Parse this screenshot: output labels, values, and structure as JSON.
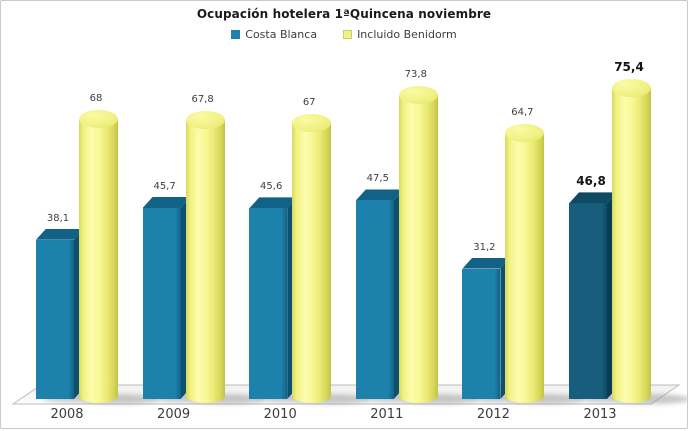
{
  "chart_data": {
    "type": "bar",
    "style": "3d",
    "title": "Ocupación hotelera 1ªQuincena noviembre",
    "categories": [
      "2008",
      "2009",
      "2010",
      "2011",
      "2012",
      "2013"
    ],
    "series": [
      {
        "name": "Costa Blanca",
        "shape": "box3d",
        "color": "#1c81ab",
        "highlight_color": "#175d7c",
        "values": [
          38.1,
          45.7,
          45.6,
          47.5,
          31.2,
          46.8
        ],
        "labels": [
          "38,1",
          "45,7",
          "45,6",
          "47,5",
          "31,2",
          "46,8"
        ]
      },
      {
        "name": "Incluido Benidorm",
        "shape": "cylinder3d",
        "color": "#f1f186",
        "values": [
          68,
          67.8,
          67,
          73.8,
          64.7,
          75.4
        ],
        "labels": [
          "68",
          "67,8",
          "67",
          "73,8",
          "64,7",
          "75,4"
        ]
      }
    ],
    "highlight_category": "2013",
    "value_label_decimal_separator": ",",
    "ylim": [
      0,
      80
    ],
    "grid": false,
    "legend_position": "top",
    "axis_labels_visible": false,
    "floor_color": "#f4f4f4",
    "background_color": "#ffffff",
    "border_color": "#c9c9c9"
  }
}
